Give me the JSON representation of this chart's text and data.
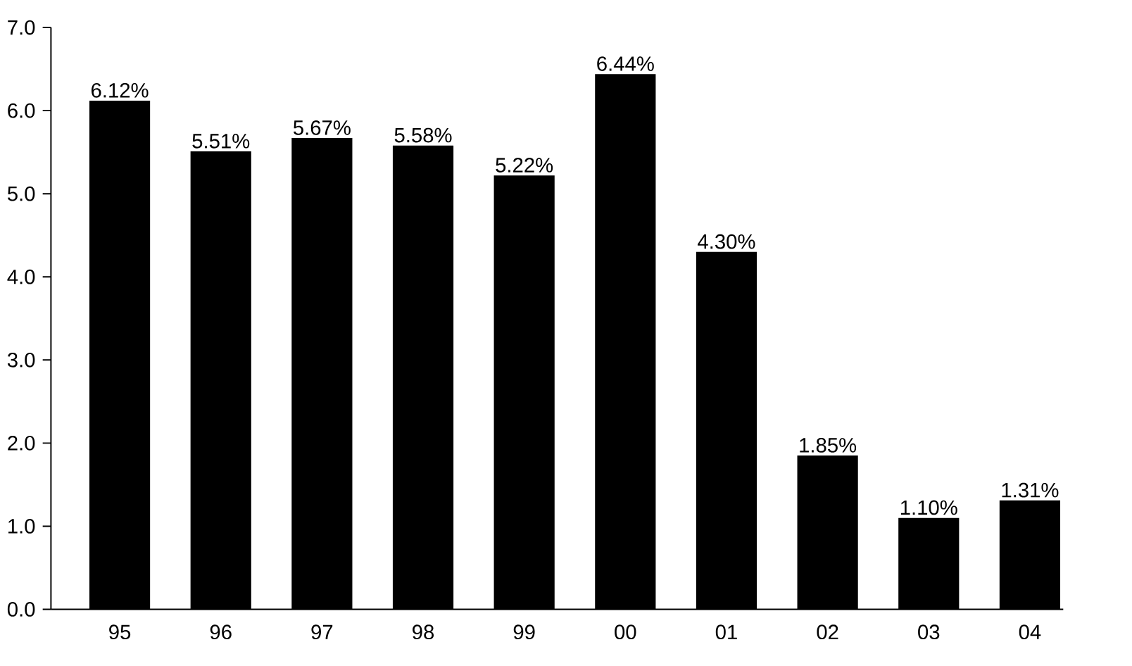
{
  "chart_data": {
    "type": "bar",
    "categories": [
      "95",
      "96",
      "97",
      "98",
      "99",
      "00",
      "01",
      "02",
      "03",
      "04"
    ],
    "values": [
      6.12,
      5.51,
      5.67,
      5.58,
      5.22,
      6.44,
      4.3,
      1.85,
      1.1,
      1.31
    ],
    "value_labels": [
      "6.12%",
      "5.51%",
      "5.67%",
      "5.58%",
      "5.22%",
      "6.44%",
      "4.30%",
      "1.85%",
      "1.10%",
      "1.31%"
    ],
    "color": "#000000",
    "ylim": [
      0,
      7
    ],
    "yticks": [
      {
        "value": 0,
        "label": "0.0"
      },
      {
        "value": 1,
        "label": "1.0"
      },
      {
        "value": 2,
        "label": "2.0"
      },
      {
        "value": 3,
        "label": "3.0"
      },
      {
        "value": 4,
        "label": "4.0"
      },
      {
        "value": 5,
        "label": "5.0"
      },
      {
        "value": 6,
        "label": "6.0"
      },
      {
        "value": 7,
        "label": "7.0"
      }
    ],
    "grid": false
  }
}
